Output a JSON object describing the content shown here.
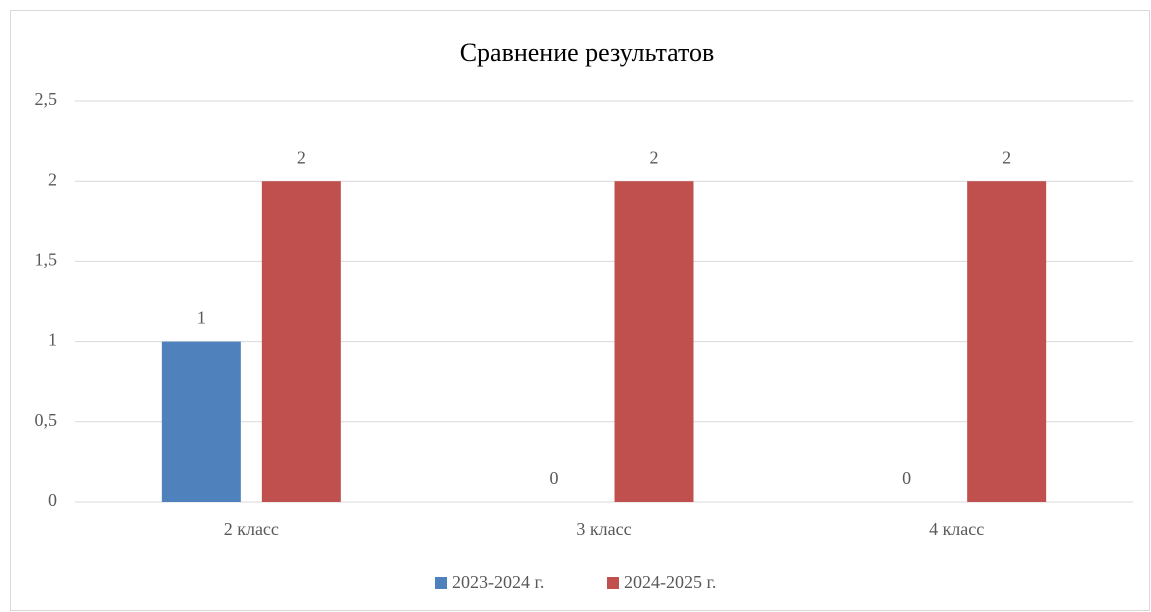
{
  "chart_data": {
    "type": "bar",
    "title": "Сравнение результатов",
    "categories": [
      "2 класс",
      "3 класс",
      "4 класс"
    ],
    "series": [
      {
        "name": "2023-2024 г.",
        "color": "#4f81bd",
        "values": [
          1,
          0,
          0
        ]
      },
      {
        "name": "2024-2025 г.",
        "color": "#c0504d",
        "values": [
          2,
          2,
          2
        ]
      }
    ],
    "ylim": [
      0,
      2.5
    ],
    "yticks": [
      0,
      {
        "value": 0.5,
        "label": "0,5"
      },
      1,
      {
        "value": 1.5,
        "label": "1,5"
      },
      2,
      {
        "value": 2.5,
        "label": "2,5"
      }
    ],
    "grid": true,
    "legend": "bottom"
  }
}
